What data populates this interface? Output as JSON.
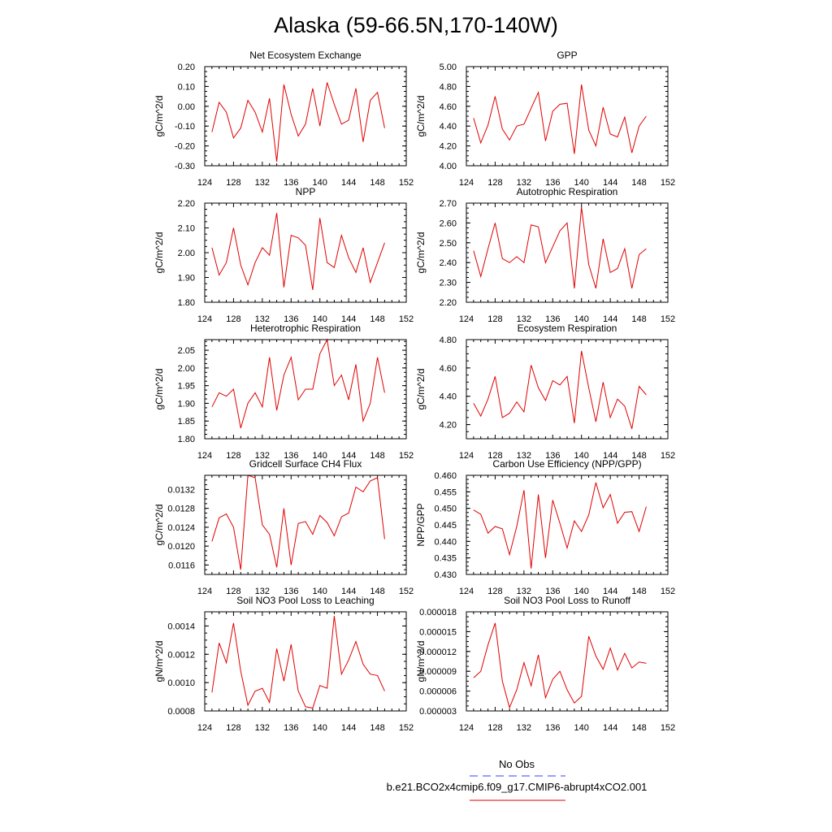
{
  "figure": {
    "title": "Alaska (59-66.5N,170-140W)",
    "legend": {
      "obs_label": "No Obs",
      "obs_color": "#3b3bff",
      "model_label": "b.e21.BCO2x4cmip6.f09_g17.CMIP6-abrupt4xCO2.001",
      "model_color": "#e00000"
    }
  },
  "chart_data": [
    {
      "type": "line",
      "title": "Net Ecosystem Exchange",
      "ylabel": "gC/m^2/d",
      "xlim": [
        124,
        152
      ],
      "ylim": [
        -0.3,
        0.2
      ],
      "xticks": [
        "124",
        "128",
        "132",
        "136",
        "140",
        "144",
        "148",
        "152"
      ],
      "yticks": [
        "-0.30",
        "-0.20",
        "-0.10",
        "0.00",
        "0.10",
        "0.20"
      ],
      "x": [
        125,
        126,
        127,
        128,
        129,
        130,
        131,
        132,
        133,
        134,
        135,
        136,
        137,
        138,
        139,
        140,
        141,
        142,
        143,
        144,
        145,
        146,
        147,
        148,
        149
      ],
      "series": [
        {
          "values": [
            -0.13,
            0.02,
            -0.03,
            -0.16,
            -0.11,
            0.03,
            -0.03,
            -0.13,
            0.04,
            -0.28,
            0.11,
            -0.04,
            -0.15,
            -0.09,
            0.09,
            -0.1,
            0.12,
            0.01,
            -0.09,
            -0.07,
            0.09,
            -0.18,
            0.03,
            0.07,
            -0.11
          ]
        }
      ]
    },
    {
      "type": "line",
      "title": "GPP",
      "ylabel": "gC/m^2/d",
      "xlim": [
        124,
        152
      ],
      "ylim": [
        4.0,
        5.0
      ],
      "xticks": [
        "124",
        "128",
        "132",
        "136",
        "140",
        "144",
        "148",
        "152"
      ],
      "yticks": [
        "4.00",
        "4.20",
        "4.40",
        "4.60",
        "4.80",
        "5.00"
      ],
      "x": [
        125,
        126,
        127,
        128,
        129,
        130,
        131,
        132,
        133,
        134,
        135,
        136,
        137,
        138,
        139,
        140,
        141,
        142,
        143,
        144,
        145,
        146,
        147,
        148,
        149
      ],
      "series": [
        {
          "values": [
            4.48,
            4.23,
            4.41,
            4.7,
            4.37,
            4.26,
            4.4,
            4.42,
            4.58,
            4.74,
            4.25,
            4.55,
            4.62,
            4.63,
            4.12,
            4.82,
            4.36,
            4.2,
            4.59,
            4.32,
            4.29,
            4.49,
            4.13,
            4.4,
            4.5
          ]
        }
      ]
    },
    {
      "type": "line",
      "title": "NPP",
      "ylabel": "gC/m^2/d",
      "xlim": [
        124,
        152
      ],
      "ylim": [
        1.8,
        2.2
      ],
      "xticks": [
        "124",
        "128",
        "132",
        "136",
        "140",
        "144",
        "148",
        "152"
      ],
      "yticks": [
        "1.80",
        "1.90",
        "2.00",
        "2.10",
        "2.20"
      ],
      "x": [
        125,
        126,
        127,
        128,
        129,
        130,
        131,
        132,
        133,
        134,
        135,
        136,
        137,
        138,
        139,
        140,
        141,
        142,
        143,
        144,
        145,
        146,
        147,
        148,
        149
      ],
      "series": [
        {
          "values": [
            2.02,
            1.91,
            1.96,
            2.1,
            1.95,
            1.87,
            1.96,
            2.02,
            1.99,
            2.16,
            1.86,
            2.07,
            2.06,
            2.03,
            1.85,
            2.14,
            1.96,
            1.94,
            2.07,
            1.98,
            1.92,
            2.02,
            1.88,
            1.96,
            2.04
          ]
        }
      ]
    },
    {
      "type": "line",
      "title": "Autotrophic Respiration",
      "ylabel": "gC/m^2/d",
      "xlim": [
        124,
        152
      ],
      "ylim": [
        2.2,
        2.7
      ],
      "xticks": [
        "124",
        "128",
        "132",
        "136",
        "140",
        "144",
        "148",
        "152"
      ],
      "yticks": [
        "2.20",
        "2.30",
        "2.40",
        "2.50",
        "2.60",
        "2.70"
      ],
      "x": [
        125,
        126,
        127,
        128,
        129,
        130,
        131,
        132,
        133,
        134,
        135,
        136,
        137,
        138,
        139,
        140,
        141,
        142,
        143,
        144,
        145,
        146,
        147,
        148,
        149
      ],
      "series": [
        {
          "values": [
            2.46,
            2.33,
            2.47,
            2.6,
            2.42,
            2.4,
            2.43,
            2.4,
            2.59,
            2.58,
            2.4,
            2.48,
            2.56,
            2.6,
            2.27,
            2.68,
            2.39,
            2.27,
            2.52,
            2.35,
            2.37,
            2.47,
            2.27,
            2.44,
            2.47
          ]
        }
      ]
    },
    {
      "type": "line",
      "title": "Heterotrophic Respiration",
      "ylabel": "gC/m^2/d",
      "xlim": [
        124,
        152
      ],
      "ylim": [
        1.8,
        2.08
      ],
      "xticks": [
        "124",
        "128",
        "132",
        "136",
        "140",
        "144",
        "148",
        "152"
      ],
      "yticks": [
        "1.80",
        "1.85",
        "1.90",
        "1.95",
        "2.00",
        "2.05"
      ],
      "x": [
        125,
        126,
        127,
        128,
        129,
        130,
        131,
        132,
        133,
        134,
        135,
        136,
        137,
        138,
        139,
        140,
        141,
        142,
        143,
        144,
        145,
        146,
        147,
        148,
        149
      ],
      "series": [
        {
          "values": [
            1.89,
            1.93,
            1.92,
            1.94,
            1.83,
            1.9,
            1.93,
            1.89,
            2.03,
            1.88,
            1.98,
            2.03,
            1.91,
            1.94,
            1.94,
            2.04,
            2.08,
            1.95,
            1.98,
            1.91,
            2.01,
            1.85,
            1.9,
            2.03,
            1.93
          ]
        }
      ]
    },
    {
      "type": "line",
      "title": "Ecosystem Respiration",
      "ylabel": "gC/m^2/d",
      "xlim": [
        124,
        152
      ],
      "ylim": [
        4.1,
        4.8
      ],
      "xticks": [
        "124",
        "128",
        "132",
        "136",
        "140",
        "144",
        "148",
        "152"
      ],
      "yticks": [
        "4.20",
        "4.40",
        "4.60",
        "4.80"
      ],
      "x": [
        125,
        126,
        127,
        128,
        129,
        130,
        131,
        132,
        133,
        134,
        135,
        136,
        137,
        138,
        139,
        140,
        141,
        142,
        143,
        144,
        145,
        146,
        147,
        148,
        149
      ],
      "series": [
        {
          "values": [
            4.35,
            4.26,
            4.38,
            4.54,
            4.25,
            4.28,
            4.36,
            4.29,
            4.62,
            4.46,
            4.37,
            4.51,
            4.48,
            4.54,
            4.21,
            4.72,
            4.46,
            4.22,
            4.5,
            4.25,
            4.38,
            4.33,
            4.17,
            4.47,
            4.41
          ]
        }
      ]
    },
    {
      "type": "line",
      "title": "Gridcell Surface CH4 Flux",
      "ylabel": "gC/m^2/d",
      "xlim": [
        124,
        152
      ],
      "ylim": [
        0.0114,
        0.0135
      ],
      "xticks": [
        "124",
        "128",
        "132",
        "136",
        "140",
        "144",
        "148",
        "152"
      ],
      "yticks": [
        "0.0116",
        "0.0120",
        "0.0124",
        "0.0128",
        "0.0132"
      ],
      "x": [
        125,
        126,
        127,
        128,
        129,
        130,
        131,
        132,
        133,
        134,
        135,
        136,
        137,
        138,
        139,
        140,
        141,
        142,
        143,
        144,
        145,
        146,
        147,
        148,
        149
      ],
      "series": [
        {
          "values": [
            0.0121,
            0.0126,
            0.01268,
            0.0124,
            0.0115,
            0.0135,
            0.01345,
            0.01245,
            0.01225,
            0.01155,
            0.0128,
            0.0116,
            0.01248,
            0.01252,
            0.01225,
            0.01265,
            0.0125,
            0.01222,
            0.01262,
            0.0127,
            0.01325,
            0.01315,
            0.01338,
            0.01345,
            0.01215
          ]
        }
      ]
    },
    {
      "type": "line",
      "title": "Carbon Use Efficiency (NPP/GPP)",
      "ylabel": "NPP/GPP",
      "xlim": [
        124,
        152
      ],
      "ylim": [
        0.43,
        0.46
      ],
      "xticks": [
        "124",
        "128",
        "132",
        "136",
        "140",
        "144",
        "148",
        "152"
      ],
      "yticks": [
        "0.430",
        "0.435",
        "0.440",
        "0.445",
        "0.450",
        "0.455",
        "0.460"
      ],
      "x": [
        125,
        126,
        127,
        128,
        129,
        130,
        131,
        132,
        133,
        134,
        135,
        136,
        137,
        138,
        139,
        140,
        141,
        142,
        143,
        144,
        145,
        146,
        147,
        148,
        149
      ],
      "series": [
        {
          "values": [
            0.4495,
            0.4482,
            0.4425,
            0.4445,
            0.4438,
            0.436,
            0.4445,
            0.4555,
            0.4318,
            0.4542,
            0.435,
            0.4525,
            0.4455,
            0.438,
            0.4462,
            0.443,
            0.448,
            0.4578,
            0.4502,
            0.4542,
            0.4455,
            0.4488,
            0.449,
            0.443,
            0.4505
          ]
        }
      ]
    },
    {
      "type": "line",
      "title": "Soil NO3 Pool Loss to Leaching",
      "ylabel": "gN/m^2/d",
      "xlim": [
        124,
        152
      ],
      "ylim": [
        0.0008,
        0.0015
      ],
      "xticks": [
        "124",
        "128",
        "132",
        "136",
        "140",
        "144",
        "148",
        "152"
      ],
      "yticks": [
        "0.0008",
        "0.0010",
        "0.0012",
        "0.0014"
      ],
      "x": [
        125,
        126,
        127,
        128,
        129,
        130,
        131,
        132,
        133,
        134,
        135,
        136,
        137,
        138,
        139,
        140,
        141,
        142,
        143,
        144,
        145,
        146,
        147,
        148,
        149
      ],
      "series": [
        {
          "values": [
            0.00093,
            0.00128,
            0.00114,
            0.00142,
            0.00108,
            0.00084,
            0.00094,
            0.00096,
            0.00086,
            0.00124,
            0.00101,
            0.00127,
            0.00094,
            0.00083,
            0.00082,
            0.00098,
            0.00096,
            0.00147,
            0.00106,
            0.00116,
            0.00129,
            0.00113,
            0.00106,
            0.00105,
            0.00094
          ]
        }
      ]
    },
    {
      "type": "line",
      "title": "Soil NO3 Pool Loss to Runoff",
      "ylabel": "gN/m^2/d",
      "xlim": [
        124,
        152
      ],
      "ylim": [
        3e-06,
        1.8e-05
      ],
      "xticks": [
        "124",
        "128",
        "132",
        "136",
        "140",
        "144",
        "148",
        "152"
      ],
      "yticks": [
        "0.000003",
        "0.000006",
        "0.000009",
        "0.000012",
        "0.000015",
        "0.000018"
      ],
      "x": [
        125,
        126,
        127,
        128,
        129,
        130,
        131,
        132,
        133,
        134,
        135,
        136,
        137,
        138,
        139,
        140,
        141,
        142,
        143,
        144,
        145,
        146,
        147,
        148,
        149
      ],
      "series": [
        {
          "values": [
            8e-06,
            9e-06,
            1.3e-05,
            1.63e-05,
            7.5e-06,
            3.5e-06,
            6.2e-06,
            1.03e-05,
            6.8e-06,
            1.15e-05,
            5e-06,
            7.8e-06,
            9e-06,
            6.2e-06,
            4.2e-06,
            5.2e-06,
            1.43e-05,
            1.13e-05,
            9.3e-06,
            1.25e-05,
            9.2e-06,
            1.17e-05,
            9.5e-06,
            1.04e-05,
            1.02e-05
          ]
        }
      ]
    }
  ]
}
